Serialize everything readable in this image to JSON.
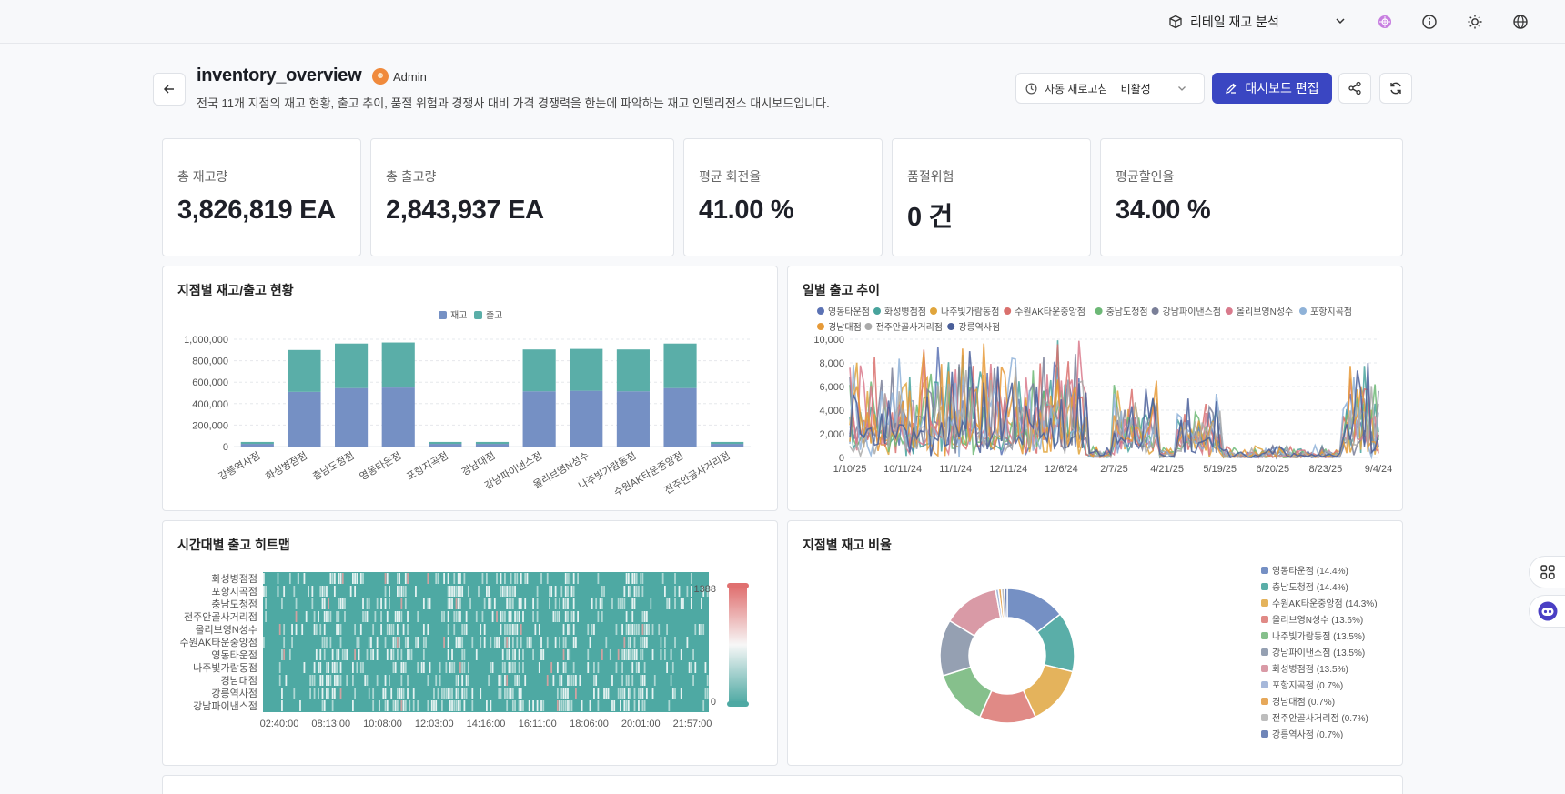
{
  "topbar": {
    "workspace": "리테일 재고 분석",
    "icons": [
      "box-icon",
      "chevron-down-icon",
      "ai-icon",
      "info-icon",
      "sun-icon",
      "globe-icon"
    ]
  },
  "header": {
    "title": "inventory_overview",
    "owner": "Admin",
    "description": "전국 11개 지점의 재고 현황, 출고 추이, 품절 위험과 경쟁사 대비 가격 경쟁력을 한눈에 파악하는 재고 인텔리전스 대시보드입니다.",
    "refresh_label": "자동 새로고침",
    "refresh_value": "비활성",
    "edit_label": "대시보드 편집"
  },
  "kpis": [
    {
      "label": "총 재고량",
      "value": "3,826,819",
      "unit": "EA"
    },
    {
      "label": "총 출고량",
      "value": "2,843,937",
      "unit": "EA"
    },
    {
      "label": "평균 회전율",
      "value": "41.00",
      "unit": "%"
    },
    {
      "label": "품절위험",
      "value": "0",
      "unit": "건"
    },
    {
      "label": "평균할인율",
      "value": "34.00",
      "unit": "%"
    }
  ],
  "colors": {
    "accent": "#3a46c2",
    "stock": "#7590c4",
    "shipment": "#5aaea8",
    "heat_low": "#4ea9a3",
    "heat_high": "#e07070"
  },
  "panels": {
    "bar_title": "지점별 재고/출고 현황",
    "line_title": "일별 출고 추이",
    "heatmap_title": "시간대별 출고 히트맵",
    "pie_title": "지점별 재고 비율"
  },
  "chart_data": [
    {
      "type": "bar",
      "stacked": true,
      "categories": [
        "강릉역사점",
        "화성병점점",
        "충남도청점",
        "영동타운점",
        "포항지곡점",
        "경남대점",
        "강남파이낸스점",
        "올리브영N성수",
        "나주빛가람동점",
        "수원AK타운중앙점",
        "전주안골사거리점"
      ],
      "series": [
        {
          "name": "재고",
          "values": [
            25000,
            510000,
            545000,
            550000,
            25000,
            25000,
            515000,
            520000,
            515000,
            545000,
            25000
          ]
        },
        {
          "name": "출고",
          "values": [
            18000,
            390000,
            415000,
            420000,
            18000,
            18000,
            390000,
            390000,
            390000,
            415000,
            18000
          ]
        }
      ],
      "yticks": [
        "0",
        "200,000",
        "400,000",
        "600,000",
        "800,000",
        "1,000,000"
      ],
      "ylim": [
        0,
        1000000
      ],
      "legend": "top-center"
    },
    {
      "type": "line",
      "series_names": [
        "영동타운점",
        "화성병점점",
        "나주빛가람동점",
        "수원AK타운중앙점",
        "충남도청점",
        "강남파이낸스점",
        "올리브영N성수",
        "포항지곡점",
        "경남대점",
        "전주안골사거리점",
        "강릉역사점"
      ],
      "xticks": [
        "1/10/25",
        "10/11/24",
        "11/1/24",
        "12/11/24",
        "12/6/24",
        "2/7/25",
        "4/21/25",
        "5/19/25",
        "6/20/25",
        "8/23/25",
        "9/4/24"
      ],
      "yticks": [
        "0",
        "2,000",
        "4,000",
        "6,000",
        "8,000",
        "10,000"
      ],
      "ylim": [
        0,
        10000
      ],
      "legend": "top"
    },
    {
      "type": "heatmap",
      "rows": [
        "화성병점점",
        "포항지곡점",
        "충남도청점",
        "전주안골사거리점",
        "올리브영N성수",
        "수원AK타운중앙점",
        "영동타운점",
        "나주빛가람동점",
        "경남대점",
        "강릉역사점",
        "강남파이낸스점"
      ],
      "xticks": [
        "02:40:00",
        "08:13:00",
        "10:08:00",
        "12:03:00",
        "14:16:00",
        "16:11:00",
        "18:06:00",
        "20:01:00",
        "21:57:00"
      ],
      "scale_max": "1388",
      "scale_min": "0"
    },
    {
      "type": "pie",
      "donut": true,
      "slices": [
        {
          "label": "영동타운점",
          "pct": 14.4,
          "legend": "영동타운점 (14.4%)",
          "color": "#7590c4"
        },
        {
          "label": "충남도청점",
          "pct": 14.4,
          "legend": "충남도청점 (14.4%)",
          "color": "#5aaea8"
        },
        {
          "label": "수원AK타운중앙점",
          "pct": 14.3,
          "legend": "수원AK타운중앙점 (14.3%)",
          "color": "#e4b35c"
        },
        {
          "label": "올리브영N성수",
          "pct": 13.6,
          "legend": "올리브영N성수 (13.6%)",
          "color": "#e08a86"
        },
        {
          "label": "나주빛가람동점",
          "pct": 13.5,
          "legend": "나주빛가람동점 (13.5%)",
          "color": "#86c08c"
        },
        {
          "label": "강남파이낸스점",
          "pct": 13.5,
          "legend": "강남파이낸스점 (13.5%)",
          "color": "#95a0b2"
        },
        {
          "label": "화성병점점",
          "pct": 13.5,
          "legend": "화성병점점 (13.5%)",
          "color": "#d99aa6"
        },
        {
          "label": "포항지곡점",
          "pct": 0.7,
          "legend": "포항지곡점 (0.7%)",
          "color": "#a6b8da"
        },
        {
          "label": "경남대점",
          "pct": 0.7,
          "legend": "경남대점 (0.7%)",
          "color": "#e6a85a"
        },
        {
          "label": "전주안골사거리점",
          "pct": 0.7,
          "legend": "전주안골사거리점 (0.7%)",
          "color": "#bdbdbd"
        },
        {
          "label": "강릉역사점",
          "pct": 0.7,
          "legend": "강릉역사점 (0.7%)",
          "color": "#6f85b8"
        }
      ],
      "legend": "right"
    }
  ]
}
